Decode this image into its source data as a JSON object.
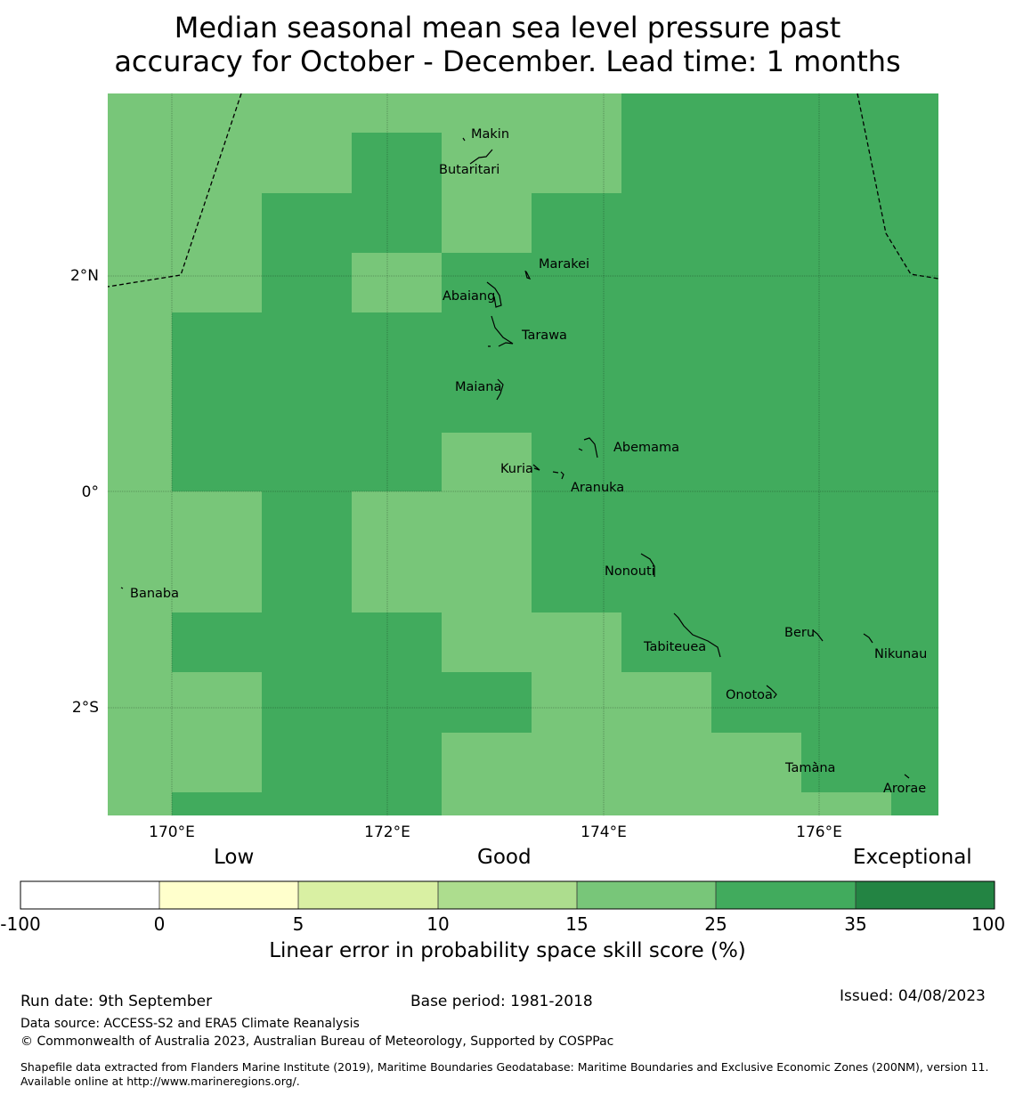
{
  "title": {
    "line1": "Median seasonal mean sea level pressure past",
    "line2": "accuracy for October - December. Lead time: 1 months"
  },
  "map": {
    "lon_ticks": [
      "170°E",
      "172°E",
      "174°E",
      "176°E"
    ],
    "lat_ticks": [
      "2°N",
      "0°",
      "2°S"
    ],
    "colors": {
      "good_15_25": "#78c679",
      "good_25_35": "#41ab5d",
      "coast": "#000000",
      "boundary": "#000000"
    },
    "islands": [
      "Makin",
      "Butaritari",
      "Marakei",
      "Abaiang",
      "Tarawa",
      "Maiana",
      "Abemama",
      "Kuria",
      "Aranuka",
      "Nonouti",
      "Banaba",
      "Tabiteuea",
      "Beru",
      "Nikunau",
      "Onotoa",
      "Tamana",
      "Arorae"
    ]
  },
  "legend": {
    "categories": [
      "Low",
      "Good",
      "Exceptional"
    ],
    "ticks": [
      "-100",
      "0",
      "5",
      "10",
      "15",
      "25",
      "35",
      "100"
    ],
    "colors": [
      "#ffffff",
      "#ffffcc",
      "#d9f0a3",
      "#addd8e",
      "#78c679",
      "#41ab5d",
      "#238443"
    ],
    "title": "Linear error in probability space skill score (%)"
  },
  "footer": {
    "run_date": "Run date: 9th September",
    "base_period": "Base period: 1981-2018",
    "issued": "Issued: 04/08/2023",
    "data_source": "Data source: ACCESS-S2 and ERA5 Climate Reanalysis",
    "copyright": "© Commonwealth of Australia 2023, Australian Bureau of Meteorology, Supported by COSPPac",
    "shapefile": "Shapefile data extracted from Flanders Marine Institute (2019), Maritime Boundaries Geodatabase: Maritime Boundaries and Exclusive Economic Zones (200NM), version 11. Available online at http://www.marineregions.org/."
  }
}
